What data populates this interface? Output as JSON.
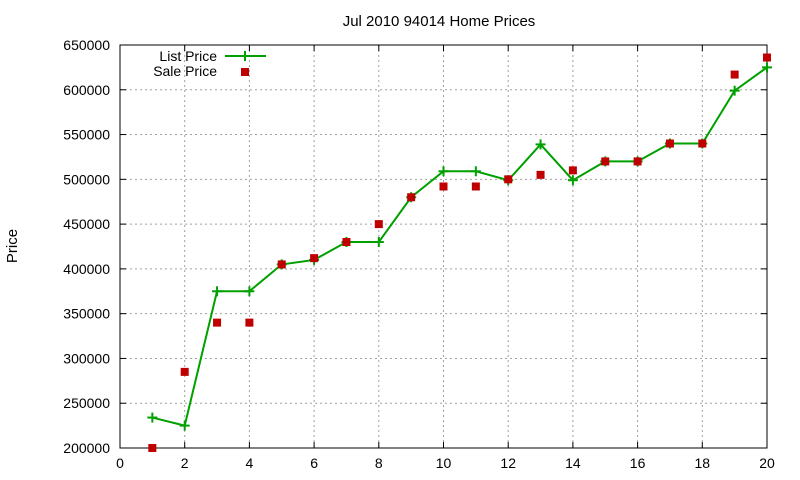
{
  "chart_data": {
    "type": "line",
    "title": "Jul 2010 94014 Home Prices",
    "xlabel": "",
    "ylabel": "Price",
    "xlim": [
      0,
      20
    ],
    "ylim": [
      200000,
      650000
    ],
    "x_ticks": [
      0,
      2,
      4,
      6,
      8,
      10,
      12,
      14,
      16,
      18,
      20
    ],
    "y_ticks": [
      200000,
      250000,
      300000,
      350000,
      400000,
      450000,
      500000,
      550000,
      600000,
      650000
    ],
    "grid": true,
    "legend_position": "top-left",
    "series": [
      {
        "name": "List Price",
        "style": "line+cross",
        "color": "#00a000",
        "x": [
          1,
          2,
          3,
          4,
          5,
          6,
          7,
          8,
          9,
          10,
          11,
          12,
          13,
          14,
          15,
          16,
          17,
          18,
          19,
          20
        ],
        "values": [
          234000,
          225000,
          375000,
          375000,
          405000,
          410000,
          430000,
          430000,
          480000,
          509000,
          509000,
          499000,
          539000,
          499000,
          520000,
          520000,
          540000,
          540000,
          599000,
          625000
        ]
      },
      {
        "name": "Sale Price",
        "style": "square",
        "color": "#c00000",
        "x": [
          1,
          2,
          3,
          4,
          5,
          6,
          7,
          8,
          9,
          10,
          11,
          12,
          13,
          14,
          15,
          16,
          17,
          18,
          19,
          20
        ],
        "values": [
          200000,
          285000,
          340000,
          340000,
          405000,
          412000,
          430000,
          450000,
          480000,
          492000,
          492000,
          500000,
          505000,
          510000,
          520000,
          520000,
          540000,
          540000,
          617000,
          636000
        ]
      }
    ]
  }
}
